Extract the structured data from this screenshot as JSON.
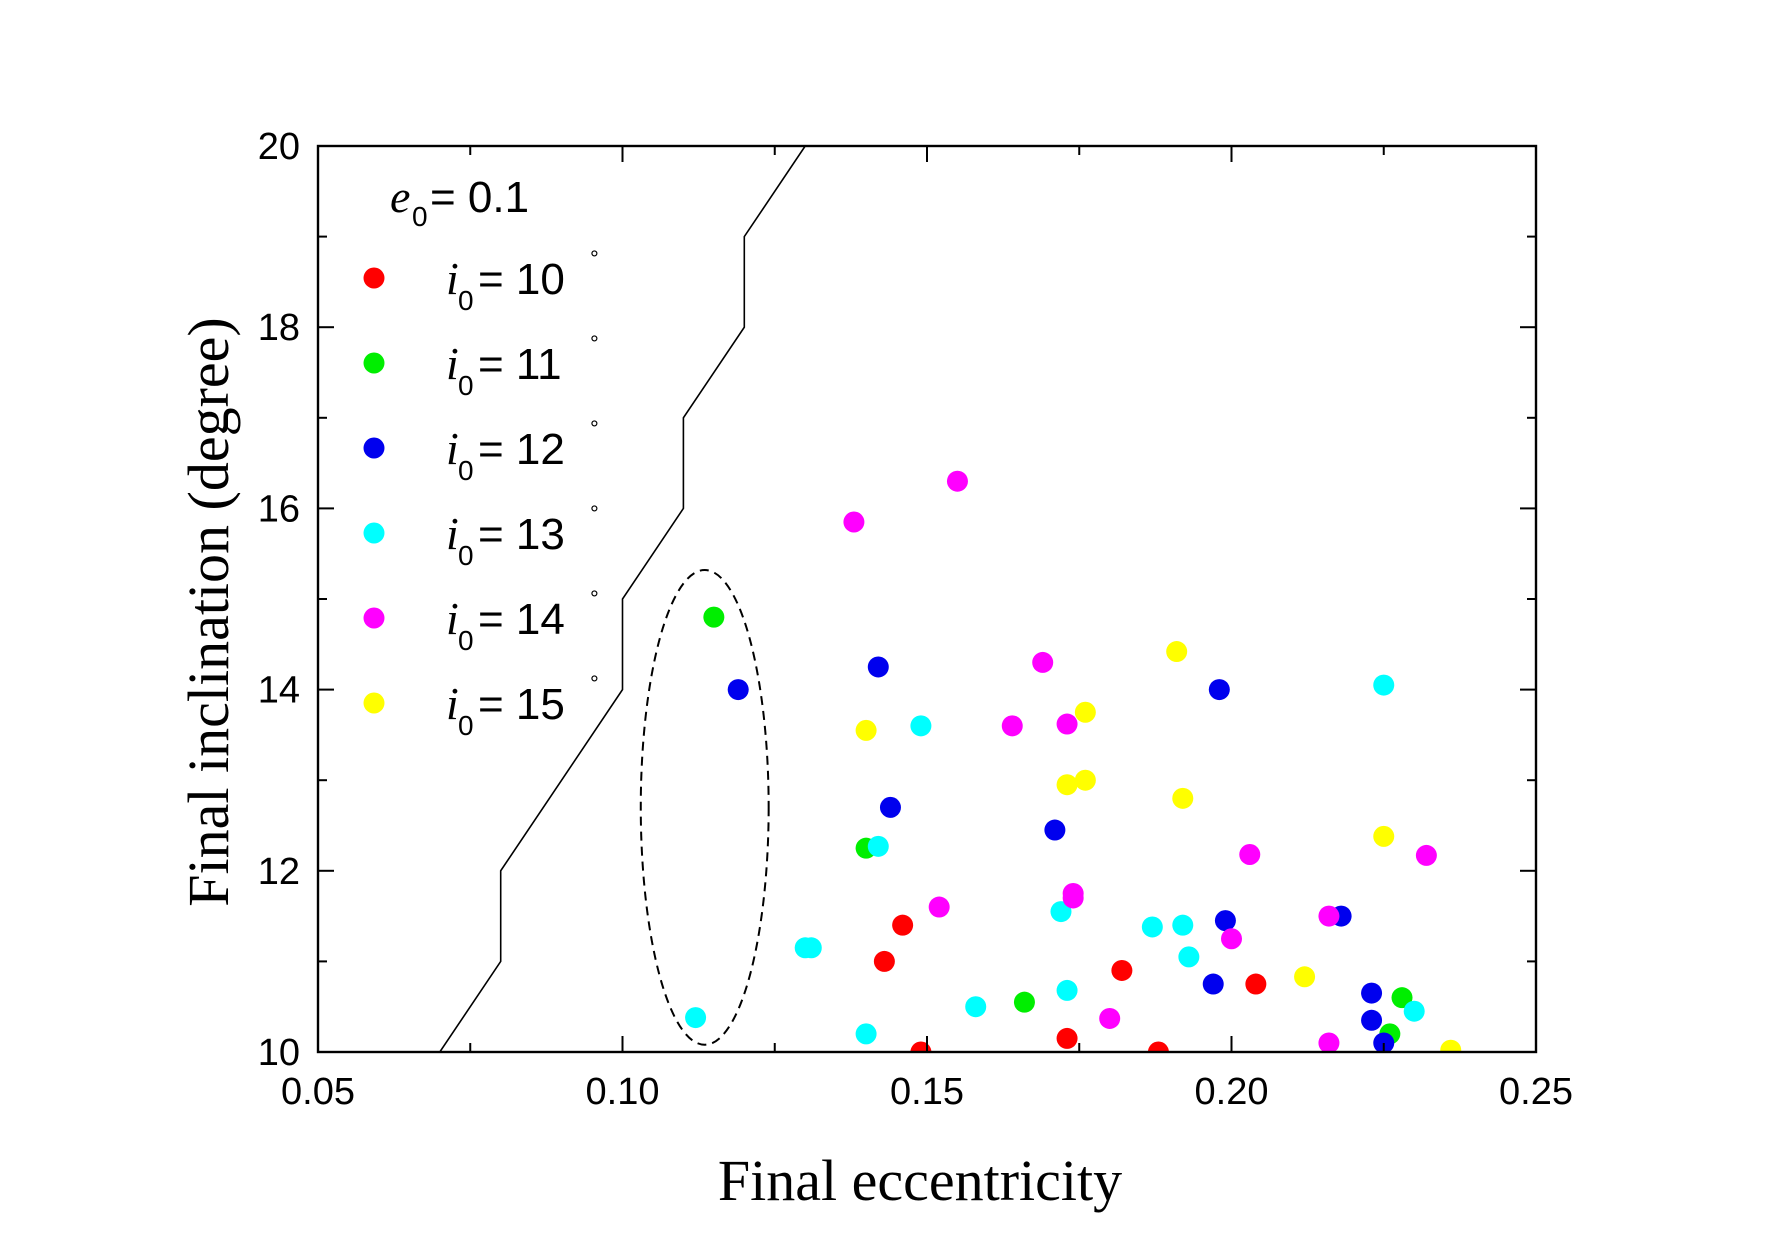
{
  "chart_data": {
    "type": "scatter",
    "xlabel": "Final eccentricity",
    "ylabel": "Final inclination (degree)",
    "xlim": [
      0.05,
      0.25
    ],
    "ylim": [
      10,
      20
    ],
    "x_ticks": [
      0.05,
      0.1,
      0.15,
      0.2,
      0.25
    ],
    "x_tick_labels": [
      "0.05",
      "0.10",
      "0.15",
      "0.20",
      "0.25"
    ],
    "y_ticks": [
      10,
      12,
      14,
      16,
      18,
      20
    ],
    "y_tick_labels": [
      "10",
      "12",
      "14",
      "16",
      "18",
      "20"
    ],
    "legend": {
      "placement": "top-left",
      "header": {
        "symbol": "e",
        "subscript": "0",
        "text": " = 0.1"
      }
    },
    "series": [
      {
        "name": "i0 = 10°",
        "symbol": "i",
        "subscript": "0",
        "label_text": " = 10",
        "degree": "°",
        "color": "#ff0000",
        "points": [
          [
            0.146,
            11.4
          ],
          [
            0.143,
            11.0
          ],
          [
            0.149,
            10.0
          ],
          [
            0.173,
            10.15
          ],
          [
            0.182,
            10.9
          ],
          [
            0.188,
            10.0
          ],
          [
            0.204,
            10.75
          ]
        ]
      },
      {
        "name": "i0 = 11°",
        "symbol": "i",
        "subscript": "0",
        "label_text": " = 11",
        "degree": "°",
        "color": "#00ee00",
        "points": [
          [
            0.115,
            14.8
          ],
          [
            0.14,
            12.25
          ],
          [
            0.166,
            10.55
          ],
          [
            0.226,
            10.2
          ],
          [
            0.228,
            10.6
          ]
        ]
      },
      {
        "name": "i0 = 12°",
        "symbol": "i",
        "subscript": "0",
        "label_text": " = 12",
        "degree": "°",
        "color": "#0000ee",
        "points": [
          [
            0.119,
            14.0
          ],
          [
            0.142,
            14.25
          ],
          [
            0.144,
            12.7
          ],
          [
            0.171,
            12.45
          ],
          [
            0.198,
            14.0
          ],
          [
            0.199,
            11.45
          ],
          [
            0.197,
            10.75
          ],
          [
            0.218,
            11.5
          ],
          [
            0.223,
            10.65
          ],
          [
            0.223,
            10.35
          ],
          [
            0.225,
            10.1
          ]
        ]
      },
      {
        "name": "i0 = 13°",
        "symbol": "i",
        "subscript": "0",
        "label_text": " = 13",
        "degree": "°",
        "color": "#00ffff",
        "points": [
          [
            0.112,
            10.38
          ],
          [
            0.13,
            11.15
          ],
          [
            0.131,
            11.15
          ],
          [
            0.14,
            10.2
          ],
          [
            0.142,
            12.27
          ],
          [
            0.149,
            13.6
          ],
          [
            0.158,
            10.5
          ],
          [
            0.172,
            11.55
          ],
          [
            0.173,
            10.68
          ],
          [
            0.187,
            11.38
          ],
          [
            0.192,
            11.4
          ],
          [
            0.193,
            11.05
          ],
          [
            0.225,
            14.05
          ],
          [
            0.23,
            10.45
          ]
        ]
      },
      {
        "name": "i0 = 14°",
        "symbol": "i",
        "subscript": "0",
        "label_text": " = 14",
        "degree": "°",
        "color": "#ff00ff",
        "points": [
          [
            0.138,
            15.85
          ],
          [
            0.155,
            16.3
          ],
          [
            0.152,
            11.6
          ],
          [
            0.164,
            13.6
          ],
          [
            0.169,
            14.3
          ],
          [
            0.173,
            13.62
          ],
          [
            0.174,
            11.75
          ],
          [
            0.174,
            11.7
          ],
          [
            0.18,
            10.37
          ],
          [
            0.2,
            11.25
          ],
          [
            0.203,
            12.18
          ],
          [
            0.216,
            11.5
          ],
          [
            0.216,
            10.1
          ],
          [
            0.232,
            12.17
          ]
        ]
      },
      {
        "name": "i0 = 15°",
        "symbol": "i",
        "subscript": "0",
        "label_text": " = 15",
        "degree": "°",
        "color": "#ffff00",
        "points": [
          [
            0.14,
            13.55
          ],
          [
            0.173,
            12.95
          ],
          [
            0.176,
            13.75
          ],
          [
            0.176,
            13.0
          ],
          [
            0.191,
            14.42
          ],
          [
            0.192,
            12.8
          ],
          [
            0.212,
            10.83
          ],
          [
            0.225,
            12.38
          ],
          [
            0.236,
            10.02
          ]
        ]
      }
    ],
    "boundary_line": [
      [
        0.07,
        10
      ],
      [
        0.08,
        11
      ],
      [
        0.08,
        12
      ],
      [
        0.1,
        14
      ],
      [
        0.1,
        15
      ],
      [
        0.11,
        16
      ],
      [
        0.11,
        17
      ],
      [
        0.12,
        18
      ],
      [
        0.12,
        19
      ],
      [
        0.13,
        20
      ]
    ],
    "annotation_ellipse": {
      "center": [
        0.1135,
        12.7
      ],
      "x_radius": 0.0105,
      "y_radius": 2.62,
      "style": "dashed"
    }
  }
}
